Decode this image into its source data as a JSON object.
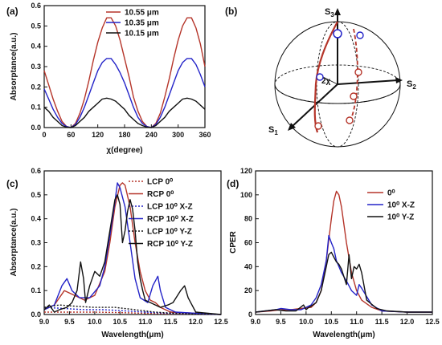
{
  "chart_data": [
    {
      "panel": "(a)",
      "type": "line",
      "xlabel": "χ(degree)",
      "ylabel": "Absorptance(a.u.)",
      "xlim": [
        0,
        360
      ],
      "ylim": [
        0,
        0.6
      ],
      "xticks": [
        "0",
        "60",
        "120",
        "180",
        "240",
        "300",
        "360"
      ],
      "yticks": [
        "0.0",
        "0.1",
        "0.2",
        "0.3",
        "0.4",
        "0.5",
        "0.6"
      ],
      "legend": "top-center",
      "series": [
        {
          "name": "10.55 μm",
          "color": "#b5352a",
          "x": [
            0,
            10,
            20,
            30,
            40,
            50,
            60,
            70,
            80,
            90,
            100,
            110,
            120,
            130,
            140,
            150,
            160,
            170,
            180,
            190,
            200,
            210,
            220,
            230,
            240,
            250,
            260,
            270,
            280,
            290,
            300,
            310,
            320,
            330,
            340,
            350,
            360
          ],
          "y": [
            0.28,
            0.21,
            0.14,
            0.08,
            0.03,
            0.005,
            0.0,
            0.02,
            0.07,
            0.14,
            0.23,
            0.33,
            0.42,
            0.49,
            0.54,
            0.54,
            0.5,
            0.43,
            0.34,
            0.25,
            0.15,
            0.08,
            0.03,
            0.005,
            0.0,
            0.02,
            0.07,
            0.15,
            0.24,
            0.34,
            0.43,
            0.5,
            0.54,
            0.54,
            0.49,
            0.41,
            0.3
          ]
        },
        {
          "name": "10.35 μm",
          "color": "#2323c8",
          "x": [
            0,
            10,
            20,
            30,
            40,
            50,
            60,
            70,
            80,
            90,
            100,
            110,
            120,
            130,
            140,
            150,
            160,
            170,
            180,
            190,
            200,
            210,
            220,
            230,
            240,
            250,
            260,
            270,
            280,
            290,
            300,
            310,
            320,
            330,
            340,
            350,
            360
          ],
          "y": [
            0.19,
            0.14,
            0.09,
            0.05,
            0.02,
            0.005,
            0.0,
            0.015,
            0.05,
            0.1,
            0.16,
            0.22,
            0.28,
            0.32,
            0.34,
            0.34,
            0.31,
            0.27,
            0.22,
            0.16,
            0.1,
            0.05,
            0.02,
            0.005,
            0.0,
            0.015,
            0.05,
            0.1,
            0.16,
            0.22,
            0.28,
            0.32,
            0.34,
            0.34,
            0.31,
            0.26,
            0.2
          ]
        },
        {
          "name": "10.15 μm",
          "color": "#111111",
          "x": [
            0,
            10,
            20,
            30,
            40,
            50,
            60,
            70,
            80,
            90,
            100,
            110,
            120,
            130,
            140,
            150,
            160,
            170,
            180,
            190,
            200,
            210,
            220,
            230,
            240,
            250,
            260,
            270,
            280,
            290,
            300,
            310,
            320,
            330,
            340,
            350,
            360
          ],
          "y": [
            0.1,
            0.08,
            0.05,
            0.03,
            0.01,
            0.002,
            0.0,
            0.01,
            0.03,
            0.05,
            0.08,
            0.1,
            0.12,
            0.14,
            0.145,
            0.14,
            0.13,
            0.11,
            0.09,
            0.06,
            0.04,
            0.02,
            0.01,
            0.002,
            0.0,
            0.01,
            0.03,
            0.05,
            0.08,
            0.1,
            0.12,
            0.14,
            0.145,
            0.14,
            0.13,
            0.11,
            0.09
          ]
        }
      ]
    },
    {
      "panel": "(c)",
      "type": "line",
      "xlabel": "Wavelength(μm)",
      "ylabel": "Absorptance(a.u.)",
      "xlim": [
        9.0,
        12.5
      ],
      "ylim": [
        0,
        0.6
      ],
      "xticks": [
        "9.0",
        "9.5",
        "10.0",
        "10.5",
        "11.0",
        "11.5",
        "12.0",
        "12.5"
      ],
      "yticks": [
        "0.0",
        "0.1",
        "0.2",
        "0.3",
        "0.4",
        "0.5",
        "0.6"
      ],
      "legend": "top-right",
      "series": [
        {
          "name": "LCP 0⁰",
          "color": "#b5352a",
          "dash": "2 2",
          "x": [
            9.0,
            9.5,
            10.0,
            10.5,
            11.0,
            11.5,
            12.0,
            12.5
          ],
          "y": [
            0.01,
            0.01,
            0.01,
            0.008,
            0.005,
            0.003,
            0.002,
            0.001
          ]
        },
        {
          "name": "RCP 0⁰",
          "color": "#b5352a",
          "x": [
            9.0,
            9.2,
            9.4,
            9.6,
            9.8,
            10.0,
            10.2,
            10.3,
            10.4,
            10.5,
            10.55,
            10.6,
            10.7,
            10.8,
            10.9,
            11.0,
            11.1,
            11.2,
            11.3,
            11.5,
            12.0,
            12.5
          ],
          "y": [
            0.02,
            0.04,
            0.1,
            0.08,
            0.06,
            0.08,
            0.18,
            0.3,
            0.45,
            0.54,
            0.55,
            0.54,
            0.45,
            0.3,
            0.18,
            0.1,
            0.06,
            0.05,
            0.03,
            0.01,
            0.005,
            0.0
          ]
        },
        {
          "name": "LCP 10⁰ X-Z",
          "color": "#2323c8",
          "dash": "2 2",
          "x": [
            9.0,
            9.4,
            9.8,
            10.2,
            10.6,
            11.0,
            11.5,
            12.0,
            12.5
          ],
          "y": [
            0.03,
            0.025,
            0.02,
            0.02,
            0.015,
            0.01,
            0.005,
            0.002,
            0.001
          ]
        },
        {
          "name": "RCP 10⁰ X-Z",
          "color": "#2323c8",
          "x": [
            9.0,
            9.2,
            9.35,
            9.45,
            9.55,
            9.7,
            9.9,
            10.1,
            10.2,
            10.3,
            10.4,
            10.45,
            10.5,
            10.6,
            10.7,
            10.8,
            10.9,
            11.05,
            11.15,
            11.25,
            11.3,
            11.4,
            11.6,
            12.0,
            12.5
          ],
          "y": [
            0.02,
            0.04,
            0.12,
            0.15,
            0.1,
            0.07,
            0.07,
            0.12,
            0.2,
            0.33,
            0.47,
            0.55,
            0.53,
            0.45,
            0.3,
            0.15,
            0.07,
            0.05,
            0.12,
            0.16,
            0.1,
            0.03,
            0.01,
            0.005,
            0.0
          ]
        },
        {
          "name": "LCP 10⁰ Y-Z",
          "color": "#111111",
          "dash": "2 2",
          "x": [
            9.0,
            9.3,
            9.6,
            10.0,
            10.4,
            10.8,
            11.2,
            11.6,
            12.0,
            12.5
          ],
          "y": [
            0.03,
            0.04,
            0.035,
            0.03,
            0.03,
            0.02,
            0.01,
            0.005,
            0.002,
            0.001
          ]
        },
        {
          "name": "RCP 10⁰ Y-Z",
          "color": "#111111",
          "x": [
            9.0,
            9.1,
            9.2,
            9.3,
            9.45,
            9.55,
            9.65,
            9.72,
            9.78,
            9.82,
            9.9,
            10.0,
            10.1,
            10.2,
            10.3,
            10.4,
            10.45,
            10.5,
            10.55,
            10.6,
            10.65,
            10.7,
            10.75,
            10.8,
            10.85,
            10.9,
            10.95,
            11.0,
            11.1,
            11.2,
            11.3,
            11.45,
            11.55,
            11.7,
            11.78,
            11.85,
            12.0,
            12.5
          ],
          "y": [
            0.02,
            0.04,
            0.01,
            0.02,
            0.03,
            0.05,
            0.1,
            0.22,
            0.15,
            0.05,
            0.12,
            0.18,
            0.16,
            0.22,
            0.35,
            0.48,
            0.5,
            0.46,
            0.3,
            0.35,
            0.43,
            0.48,
            0.44,
            0.35,
            0.22,
            0.15,
            0.1,
            0.06,
            0.05,
            0.04,
            0.03,
            0.04,
            0.05,
            0.1,
            0.12,
            0.07,
            0.01,
            0.0
          ]
        }
      ]
    },
    {
      "panel": "(d)",
      "type": "line",
      "xlabel": "Wavelength(μm)",
      "ylabel": "CPER",
      "xlim": [
        9.0,
        12.5
      ],
      "ylim": [
        0,
        120
      ],
      "xticks": [
        "9.0",
        "9.5",
        "10.0",
        "10.5",
        "11.0",
        "11.5",
        "12.0",
        "12.5"
      ],
      "yticks": [
        "0",
        "20",
        "40",
        "60",
        "80",
        "100",
        "120"
      ],
      "legend": "top-right",
      "series": [
        {
          "name": "0⁰",
          "color": "#b5352a",
          "x": [
            9.0,
            9.3,
            9.5,
            9.7,
            9.9,
            10.1,
            10.2,
            10.3,
            10.4,
            10.5,
            10.55,
            10.6,
            10.65,
            10.7,
            10.8,
            10.9,
            11.0,
            11.1,
            11.3,
            11.5,
            12.0,
            12.5
          ],
          "y": [
            2,
            3,
            4,
            4,
            5,
            6,
            10,
            20,
            45,
            80,
            95,
            103,
            100,
            90,
            60,
            35,
            20,
            12,
            6,
            3,
            2,
            2
          ]
        },
        {
          "name": "10⁰ X-Z",
          "color": "#2323c8",
          "x": [
            9.0,
            9.2,
            9.4,
            9.5,
            9.7,
            9.9,
            10.0,
            10.1,
            10.2,
            10.3,
            10.4,
            10.45,
            10.5,
            10.55,
            10.6,
            10.7,
            10.8,
            10.9,
            11.0,
            11.05,
            11.1,
            11.3,
            11.5,
            12.0,
            12.5
          ],
          "y": [
            2,
            3,
            4,
            5,
            4,
            4,
            6,
            8,
            14,
            25,
            45,
            66,
            60,
            55,
            45,
            35,
            28,
            20,
            16,
            25,
            22,
            8,
            3,
            2,
            2
          ]
        },
        {
          "name": "10⁰ Y-Z",
          "color": "#111111",
          "x": [
            9.0,
            9.2,
            9.4,
            9.6,
            9.8,
            9.95,
            10.0,
            10.05,
            10.1,
            10.2,
            10.3,
            10.4,
            10.45,
            10.5,
            10.55,
            10.6,
            10.65,
            10.7,
            10.8,
            10.85,
            10.9,
            10.95,
            11.0,
            11.05,
            11.1,
            11.2,
            11.4,
            11.6,
            12.0,
            12.5
          ],
          "y": [
            2,
            3,
            4,
            3,
            3,
            8,
            4,
            6,
            7,
            10,
            20,
            40,
            50,
            52,
            48,
            44,
            42,
            38,
            25,
            50,
            30,
            40,
            38,
            42,
            35,
            12,
            5,
            3,
            2,
            2
          ]
        }
      ]
    }
  ],
  "panels": {
    "b": {
      "label": "(b)",
      "s1": "S",
      "s1_sub": "1",
      "s2": "S",
      "s2_sub": "2",
      "s3": "S",
      "s3_sub": "3",
      "chi": "2χ"
    }
  }
}
